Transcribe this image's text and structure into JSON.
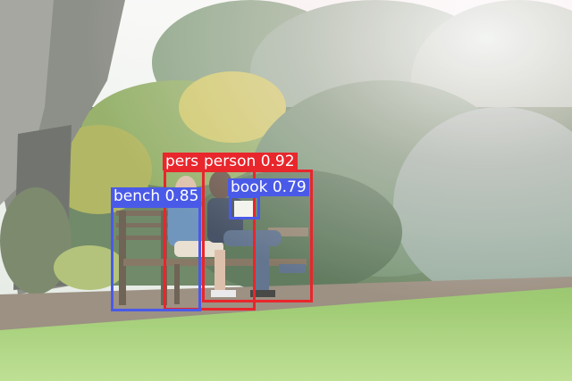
{
  "detections": [
    {
      "label": "person",
      "score": "0.92",
      "color": "#e8262c"
    },
    {
      "label": "pers",
      "score": "",
      "color": "#e8262c"
    },
    {
      "label": "bench",
      "score": "0.85",
      "color": "#4a5ae8"
    },
    {
      "label": "book",
      "score": "0.79",
      "color": "#4a5ae8"
    }
  ],
  "colors": {
    "sky": "#f4f6f4",
    "foliage_dark": "#4f6a48",
    "foliage_light": "#9fb48c",
    "grass": "#9fcf6a",
    "path": "#9a8c7a",
    "trunk": "#7c7c78"
  }
}
